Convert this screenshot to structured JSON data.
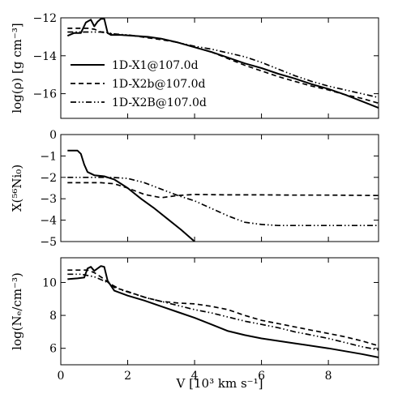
{
  "chart_data": [
    {
      "type": "line",
      "ylabel": "log(ρ) [g cm⁻³]",
      "xlim": [
        0,
        9.5
      ],
      "ylim": [
        -17.3,
        -12
      ],
      "yticks": [
        -12,
        -14,
        -16
      ],
      "xticks": [
        0,
        2,
        4,
        6,
        8
      ],
      "legend_position": "middle-right",
      "series": [
        {
          "name": "1D-X1@107.0d",
          "style": "solid",
          "x": [
            0.2,
            0.4,
            0.6,
            0.75,
            0.9,
            1.0,
            1.1,
            1.2,
            1.3,
            1.4,
            1.5,
            1.8,
            2.2,
            2.6,
            3.0,
            3.5,
            4.0,
            4.5,
            5.0,
            5.5,
            6.0,
            6.5,
            7.0,
            7.5,
            8.0,
            8.5,
            9.0,
            9.5
          ],
          "y": [
            -12.95,
            -12.8,
            -12.8,
            -12.25,
            -12.1,
            -12.45,
            -12.2,
            -12.05,
            -12.05,
            -12.8,
            -12.9,
            -12.9,
            -12.95,
            -13.0,
            -13.1,
            -13.3,
            -13.55,
            -13.8,
            -14.1,
            -14.4,
            -14.65,
            -14.95,
            -15.2,
            -15.5,
            -15.75,
            -16.05,
            -16.4,
            -16.75
          ]
        },
        {
          "name": "1D-X2b@107.0d",
          "style": "dashed",
          "x": [
            0.2,
            0.5,
            0.8,
            1.0,
            1.2,
            1.5,
            1.8,
            2.2,
            2.6,
            3.0,
            3.5,
            4.0,
            4.5,
            5.0,
            5.5,
            6.0,
            6.5,
            7.0,
            7.5,
            8.0,
            8.5,
            9.0,
            9.5
          ],
          "y": [
            -12.55,
            -12.55,
            -12.55,
            -12.6,
            -12.75,
            -12.85,
            -12.9,
            -12.95,
            -13.05,
            -13.15,
            -13.3,
            -13.55,
            -13.8,
            -14.15,
            -14.5,
            -14.8,
            -15.1,
            -15.35,
            -15.6,
            -15.8,
            -16.05,
            -16.25,
            -16.5
          ]
        },
        {
          "name": "1D-X2B@107.0d",
          "style": "dash-dot-dot",
          "x": [
            0.2,
            0.6,
            1.0,
            1.3,
            1.6,
            2.0,
            2.5,
            3.0,
            3.5,
            4.0,
            4.5,
            5.0,
            5.5,
            6.0,
            6.5,
            7.0,
            7.5,
            8.0,
            8.5,
            9.0,
            9.5
          ],
          "y": [
            -12.75,
            -12.75,
            -12.75,
            -12.75,
            -12.85,
            -12.9,
            -13.0,
            -13.1,
            -13.3,
            -13.5,
            -13.65,
            -13.85,
            -14.05,
            -14.35,
            -14.7,
            -15.05,
            -15.35,
            -15.6,
            -15.8,
            -16.0,
            -16.2
          ]
        }
      ]
    },
    {
      "type": "line",
      "ylabel": "X(⁵⁶Ni₀)",
      "xlim": [
        0,
        9.5
      ],
      "ylim": [
        -5,
        0
      ],
      "yticks": [
        0,
        -1,
        -2,
        -3,
        -4,
        -5
      ],
      "xticks": [
        0,
        2,
        4,
        6,
        8
      ],
      "series": [
        {
          "name": "1D-X1@107.0d",
          "style": "solid",
          "x": [
            0.2,
            0.5,
            0.6,
            0.7,
            0.8,
            1.0,
            1.3,
            1.6,
            2.0,
            2.4,
            2.8,
            3.2,
            3.6,
            4.0
          ],
          "y": [
            -0.75,
            -0.75,
            -0.9,
            -1.4,
            -1.75,
            -1.9,
            -1.95,
            -2.1,
            -2.5,
            -3.0,
            -3.45,
            -3.95,
            -4.45,
            -5.0
          ]
        },
        {
          "name": "1D-X2b@107.0d",
          "style": "dashed",
          "x": [
            0.2,
            0.8,
            1.2,
            1.6,
            2.0,
            2.5,
            3.0,
            3.5,
            4.0,
            5.0,
            6.0,
            7.0,
            8.0,
            9.0,
            9.5
          ],
          "y": [
            -2.25,
            -2.25,
            -2.25,
            -2.3,
            -2.5,
            -2.8,
            -2.95,
            -2.85,
            -2.8,
            -2.82,
            -2.82,
            -2.83,
            -2.83,
            -2.84,
            -2.85
          ]
        },
        {
          "name": "1D-X2B@107.0d",
          "style": "dash-dot-dot",
          "x": [
            0.2,
            1.0,
            1.5,
            2.0,
            2.5,
            3.0,
            3.5,
            4.0,
            4.5,
            5.0,
            5.5,
            6.0,
            6.5,
            7.0,
            8.0,
            9.0,
            9.5
          ],
          "y": [
            -2.0,
            -2.0,
            -2.0,
            -2.05,
            -2.25,
            -2.55,
            -2.85,
            -3.1,
            -3.45,
            -3.8,
            -4.1,
            -4.2,
            -4.25,
            -4.25,
            -4.25,
            -4.25,
            -4.25
          ]
        }
      ]
    },
    {
      "type": "line",
      "ylabel": "log(Nₑ/cm⁻³)",
      "xlabel": "V [10³ km s⁻¹]",
      "xlim": [
        0,
        9.5
      ],
      "ylim": [
        5,
        11.5
      ],
      "yticks": [
        10,
        8,
        6
      ],
      "xticks": [
        0,
        2,
        4,
        6,
        8
      ],
      "series": [
        {
          "name": "1D-X1@107.0d",
          "style": "solid",
          "x": [
            0.2,
            0.5,
            0.7,
            0.8,
            0.9,
            1.0,
            1.1,
            1.2,
            1.3,
            1.4,
            1.6,
            2.0,
            2.5,
            3.0,
            3.5,
            4.0,
            4.5,
            5.0,
            5.5,
            6.0,
            7.0,
            8.0,
            9.0,
            9.5
          ],
          "y": [
            10.2,
            10.25,
            10.3,
            10.85,
            10.95,
            10.7,
            10.85,
            11.0,
            10.95,
            10.1,
            9.5,
            9.2,
            8.9,
            8.55,
            8.2,
            7.85,
            7.45,
            7.05,
            6.8,
            6.6,
            6.3,
            6.0,
            5.65,
            5.45
          ]
        },
        {
          "name": "1D-X2b@107.0d",
          "style": "dashed",
          "x": [
            0.2,
            0.5,
            0.8,
            1.0,
            1.3,
            1.6,
            2.0,
            2.5,
            3.0,
            3.5,
            4.0,
            4.5,
            5.0,
            5.5,
            6.0,
            6.5,
            7.0,
            7.5,
            8.0,
            8.5,
            9.0,
            9.5
          ],
          "y": [
            10.75,
            10.75,
            10.75,
            10.6,
            10.2,
            9.7,
            9.45,
            9.1,
            8.85,
            8.75,
            8.7,
            8.55,
            8.35,
            8.0,
            7.7,
            7.5,
            7.3,
            7.1,
            6.9,
            6.7,
            6.45,
            6.15
          ]
        },
        {
          "name": "1D-X2B@107.0d",
          "style": "dash-dot-dot",
          "x": [
            0.2,
            0.6,
            1.0,
            1.4,
            1.8,
            2.2,
            2.6,
            3.0,
            3.5,
            4.0,
            4.5,
            5.0,
            5.5,
            6.0,
            6.5,
            7.0,
            7.5,
            8.0,
            8.5,
            9.0,
            9.5
          ],
          "y": [
            10.5,
            10.5,
            10.35,
            10.0,
            9.55,
            9.3,
            9.05,
            8.85,
            8.6,
            8.35,
            8.15,
            7.9,
            7.65,
            7.45,
            7.25,
            7.0,
            6.8,
            6.6,
            6.35,
            6.1,
            5.9
          ]
        }
      ]
    }
  ]
}
